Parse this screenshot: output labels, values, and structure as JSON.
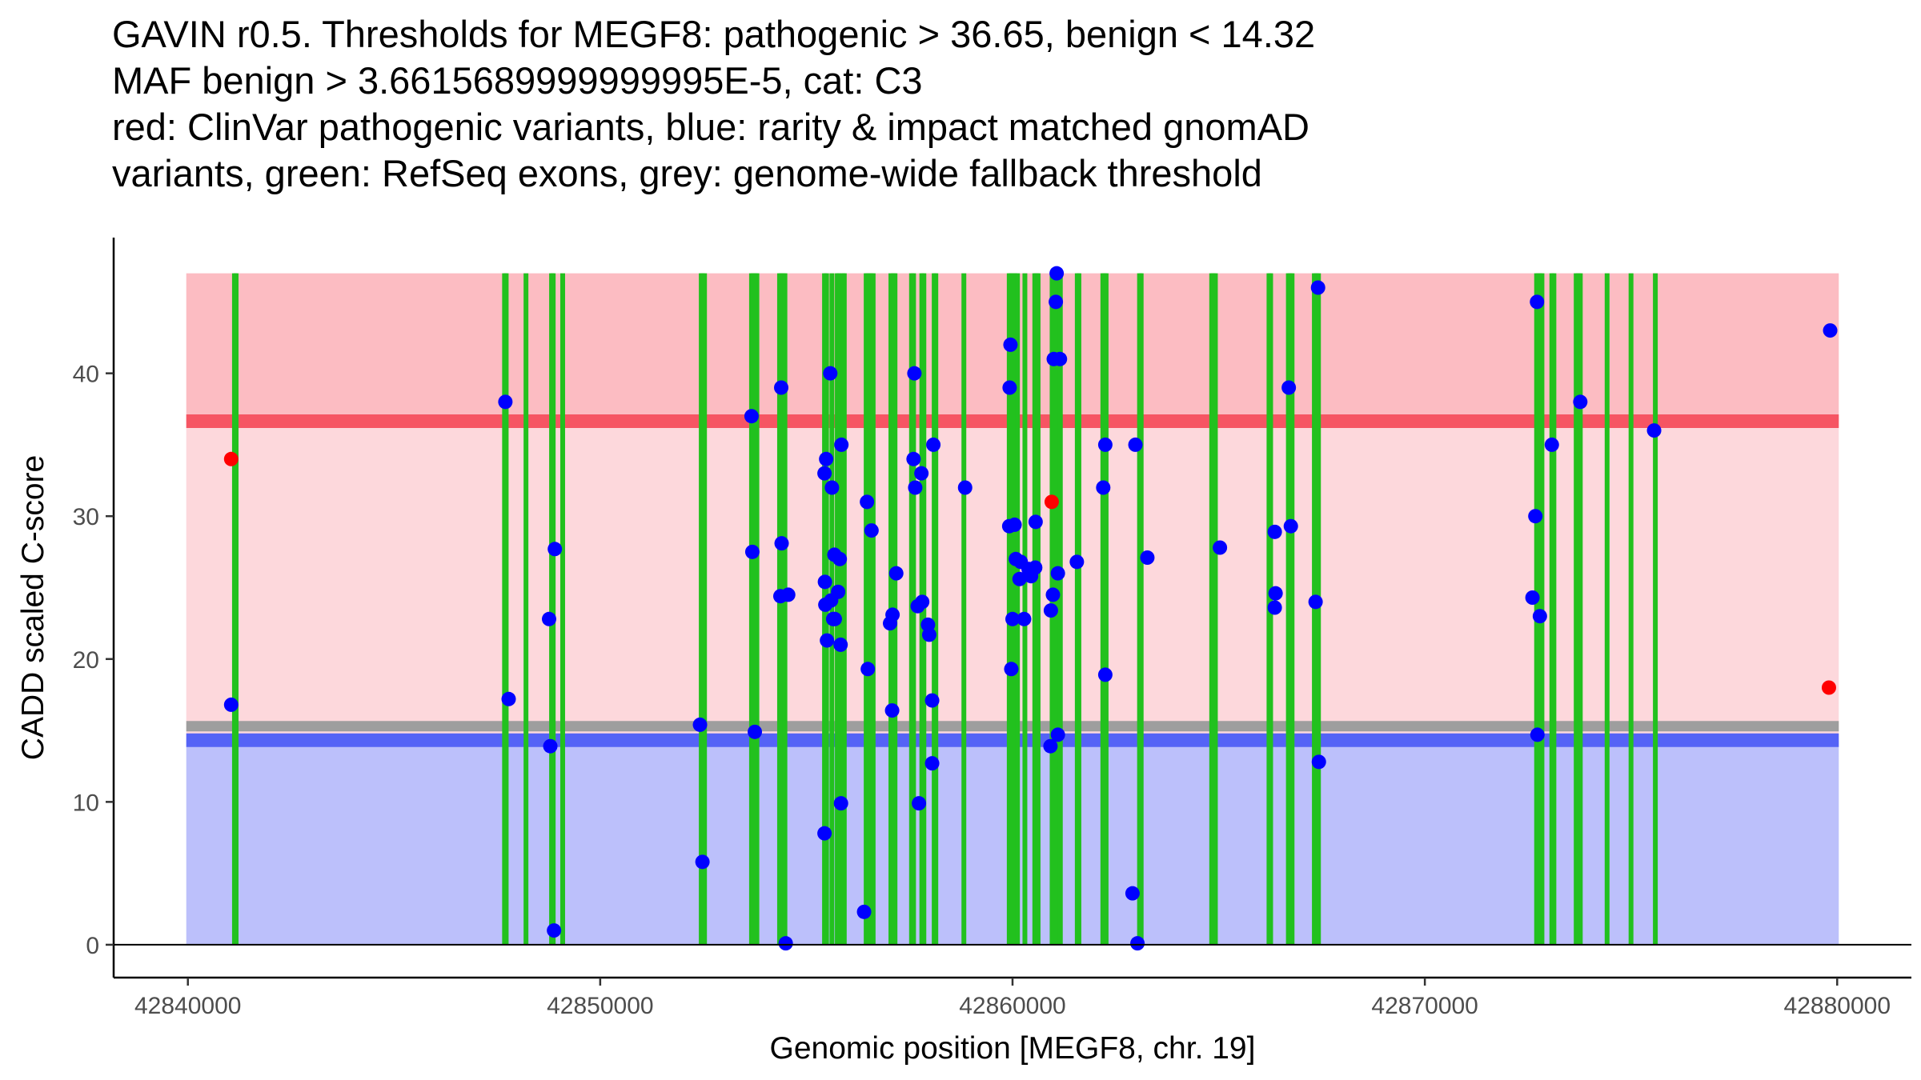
{
  "chart_data": {
    "type": "scatter",
    "title_lines": [
      "GAVIN r0.5. Thresholds for MEGF8: pathogenic > 36.65, benign < 14.32",
      "MAF benign > 3.6615689999999995E-5, cat: C3",
      "red: ClinVar pathogenic variants, blue: rarity & impact matched gnomAD",
      "variants, green: RefSeq exons, grey: genome-wide fallback threshold"
    ],
    "xlabel": "Genomic position [MEGF8, chr. 19]",
    "ylabel": "CADD scaled C-score",
    "xlim": [
      42838200,
      42881800
    ],
    "ylim": [
      -2.3,
      49.5
    ],
    "x_ticks": [
      42840000,
      42850000,
      42860000,
      42870000,
      42880000
    ],
    "y_ticks": [
      0,
      10,
      20,
      30,
      40
    ],
    "thresholds": {
      "pathogenic": 36.65,
      "benign": 14.32,
      "genome_wide_fallback": 15.3,
      "region_top": 47
    },
    "colors": {
      "pathogenic_band": "#fcbcc2",
      "middle_band": "#fdd8dc",
      "benign_band": "#bcc0fb",
      "pathogenic_line": "#f65563",
      "benign_line": "#5563f6",
      "fallback_line": "#9e9e9e",
      "exon": "#22c11e",
      "clinvar_point": "#ff0000",
      "gnomad_point": "#0000ff"
    },
    "exons": [
      42841130,
      42841170,
      42847680,
      42847720,
      42848200,
      42848820,
      42848860,
      42849090,
      42852450,
      42852480,
      42852530,
      42853670,
      42853710,
      42853760,
      42853800,
      42854350,
      42854390,
      42854440,
      42854480,
      42855440,
      42855490,
      42855620,
      42855750,
      42855790,
      42855880,
      42855920,
      42856450,
      42856490,
      42856530,
      42856570,
      42856620,
      42857050,
      42857110,
      42857150,
      42857550,
      42857600,
      42857800,
      42857850,
      42858100,
      42858140,
      42858820,
      42859920,
      42859960,
      42860010,
      42860060,
      42860120,
      42860300,
      42860540,
      42860580,
      42860620,
      42860960,
      42861000,
      42861050,
      42861100,
      42861160,
      42861570,
      42861610,
      42862190,
      42862230,
      42862270,
      42863080,
      42863120,
      42864830,
      42864870,
      42864920,
      42866220,
      42866260,
      42866690,
      42866730,
      42866780,
      42867320,
      42867370,
      42867420,
      42872710,
      42872750,
      42872790,
      42872840,
      42873080,
      42873130,
      42873670,
      42873720,
      42873770,
      42874420,
      42875000,
      42875590
    ],
    "series": [
      {
        "name": "ClinVar pathogenic variants",
        "color": "#ff0000",
        "points": [
          [
            42841050,
            34.0
          ],
          [
            42860950,
            31.0
          ],
          [
            42879800,
            18.0
          ]
        ]
      },
      {
        "name": "rarity & impact matched gnomAD variants",
        "color": "#0000ff",
        "points": [
          [
            42841050,
            16.8
          ],
          [
            42847700,
            38.0
          ],
          [
            42847780,
            17.2
          ],
          [
            42848760,
            22.8
          ],
          [
            42848790,
            13.9
          ],
          [
            42848900,
            27.7
          ],
          [
            42848880,
            1.0
          ],
          [
            42852420,
            15.4
          ],
          [
            42852480,
            5.8
          ],
          [
            42853670,
            37.0
          ],
          [
            42853690,
            27.5
          ],
          [
            42853750,
            14.9
          ],
          [
            42854390,
            39.0
          ],
          [
            42854400,
            28.1
          ],
          [
            42854370,
            24.4
          ],
          [
            42854560,
            24.5
          ],
          [
            42854500,
            0.1
          ],
          [
            42855450,
            25.4
          ],
          [
            42855480,
            34.0
          ],
          [
            42855440,
            33.0
          ],
          [
            42855460,
            23.8
          ],
          [
            42855500,
            21.3
          ],
          [
            42855600,
            24.1
          ],
          [
            42855650,
            22.8
          ],
          [
            42855680,
            27.3
          ],
          [
            42855580,
            40.0
          ],
          [
            42855690,
            22.8
          ],
          [
            42855620,
            32.0
          ],
          [
            42855810,
            27.0
          ],
          [
            42855770,
            24.7
          ],
          [
            42855850,
            35.0
          ],
          [
            42855830,
            21.0
          ],
          [
            42855840,
            9.9
          ],
          [
            42855440,
            7.8
          ],
          [
            42856470,
            31.0
          ],
          [
            42856490,
            19.3
          ],
          [
            42856580,
            29.0
          ],
          [
            42856400,
            2.3
          ],
          [
            42857030,
            22.5
          ],
          [
            42857090,
            23.1
          ],
          [
            42857180,
            26.0
          ],
          [
            42857080,
            16.4
          ],
          [
            42857620,
            40.0
          ],
          [
            42857600,
            34.0
          ],
          [
            42857640,
            32.0
          ],
          [
            42857700,
            23.7
          ],
          [
            42857790,
            33.0
          ],
          [
            42857810,
            24.0
          ],
          [
            42857730,
            9.9
          ],
          [
            42857950,
            22.4
          ],
          [
            42857980,
            21.7
          ],
          [
            42858080,
            35.0
          ],
          [
            42858050,
            17.1
          ],
          [
            42858050,
            12.7
          ],
          [
            42858850,
            32.0
          ],
          [
            42859950,
            42.0
          ],
          [
            42859930,
            39.0
          ],
          [
            42859920,
            29.3
          ],
          [
            42860050,
            29.4
          ],
          [
            42860080,
            27.0
          ],
          [
            42860000,
            22.8
          ],
          [
            42859970,
            19.3
          ],
          [
            42860200,
            26.8
          ],
          [
            42860170,
            25.6
          ],
          [
            42860280,
            22.8
          ],
          [
            42860390,
            26.3
          ],
          [
            42860450,
            25.8
          ],
          [
            42860550,
            26.4
          ],
          [
            42860560,
            29.6
          ],
          [
            42861000,
            41.0
          ],
          [
            42861150,
            41.0
          ],
          [
            42861070,
            47.0
          ],
          [
            42861050,
            45.0
          ],
          [
            42861100,
            26.0
          ],
          [
            42860980,
            24.5
          ],
          [
            42860930,
            23.4
          ],
          [
            42861100,
            14.7
          ],
          [
            42860920,
            13.9
          ],
          [
            42861560,
            26.8
          ],
          [
            42862250,
            35.0
          ],
          [
            42862200,
            32.0
          ],
          [
            42862250,
            18.9
          ],
          [
            42862980,
            35.0
          ],
          [
            42863270,
            27.1
          ],
          [
            42862910,
            3.6
          ],
          [
            42863030,
            0.1
          ],
          [
            42865030,
            27.8
          ],
          [
            42866360,
            28.9
          ],
          [
            42866380,
            24.6
          ],
          [
            42866360,
            23.6
          ],
          [
            42866700,
            39.0
          ],
          [
            42866750,
            29.3
          ],
          [
            42867410,
            46.0
          ],
          [
            42867350,
            24.0
          ],
          [
            42867430,
            12.8
          ],
          [
            42872720,
            45.0
          ],
          [
            42872680,
            30.0
          ],
          [
            42872610,
            24.3
          ],
          [
            42872790,
            23.0
          ],
          [
            42872730,
            14.7
          ],
          [
            42873080,
            35.0
          ],
          [
            42873770,
            38.0
          ],
          [
            42875560,
            36.0
          ],
          [
            42879830,
            43.0
          ]
        ]
      }
    ]
  }
}
